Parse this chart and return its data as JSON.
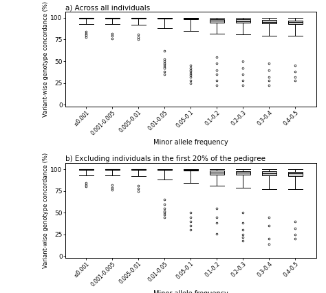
{
  "title_a": "a) Across all individuals",
  "title_b": "b) Excluding individuals in the first 20% of the pedigree",
  "xlabel": "Minor allele frequency",
  "ylabel": "Variant-wise genotype concordance (%)",
  "categories": [
    "≤0.001",
    "0.001-0.005",
    "0.005-0.01",
    "0.01-0.05",
    "0.05-0.1",
    "0.1-0.2",
    "0.2-0.3",
    "0.3-0.4",
    "0.4-0.5"
  ],
  "ylim": [
    -2,
    107
  ],
  "yticks": [
    0,
    25,
    50,
    75,
    100
  ],
  "panel_a": {
    "medians": [
      99.8,
      99.8,
      99.8,
      99.5,
      99.3,
      96.5,
      96.0,
      95.5,
      95.0
    ],
    "q1": [
      99.5,
      99.5,
      99.3,
      99.0,
      98.5,
      94.5,
      94.0,
      93.5,
      93.0
    ],
    "q3": [
      100,
      100,
      100,
      100,
      100,
      98.5,
      98.0,
      97.5,
      97.0
    ],
    "whislo": [
      93.0,
      93.0,
      92.0,
      88.0,
      85.0,
      82.0,
      81.0,
      79.0,
      79.0
    ],
    "whishi": [
      100,
      100,
      100,
      100,
      100,
      100,
      100,
      100,
      100
    ],
    "fliers_y": [
      [
        84,
        82,
        80,
        78
      ],
      [
        82,
        79,
        76
      ],
      [
        81,
        78,
        75
      ],
      [
        62,
        52,
        50,
        48,
        46,
        44,
        42,
        38,
        35
      ],
      [
        45,
        42,
        40,
        38,
        36,
        34,
        32,
        28,
        25
      ],
      [
        55,
        48,
        40,
        35,
        28,
        22
      ],
      [
        50,
        42,
        35,
        28,
        22
      ],
      [
        48,
        40,
        32,
        28,
        22
      ],
      [
        45,
        38,
        32,
        28
      ]
    ]
  },
  "panel_b": {
    "medians": [
      99.8,
      99.8,
      99.8,
      99.5,
      99.3,
      96.5,
      96.0,
      95.5,
      95.0
    ],
    "q1": [
      99.5,
      99.5,
      99.3,
      99.0,
      98.5,
      94.0,
      93.5,
      93.0,
      92.5
    ],
    "q3": [
      100,
      100,
      100,
      100,
      100,
      98.5,
      98.0,
      97.5,
      97.0
    ],
    "whislo": [
      93.0,
      93.0,
      92.0,
      88.0,
      84.0,
      81.0,
      79.0,
      77.0,
      77.0
    ],
    "whishi": [
      100,
      100,
      100,
      100,
      100,
      100,
      100,
      100,
      100
    ],
    "fliers_y": [
      [
        84,
        82,
        80
      ],
      [
        82,
        79,
        76
      ],
      [
        81,
        78,
        75
      ],
      [
        65,
        60,
        55,
        52,
        50,
        48,
        45
      ],
      [
        50,
        45,
        40,
        35,
        30
      ],
      [
        55,
        45,
        38,
        26
      ],
      [
        50,
        38,
        30,
        25,
        22,
        18
      ],
      [
        45,
        35,
        20,
        14
      ],
      [
        40,
        32,
        25,
        20
      ]
    ]
  }
}
